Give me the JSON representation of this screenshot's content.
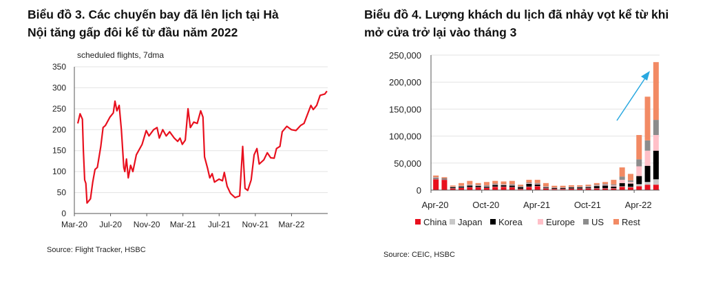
{
  "chart_data": [
    {
      "type": "line",
      "title": "Biểu đồ 3. Các chuyến bay đã lên lịch tại Hà Nội tăng gấp đôi kể từ đầu năm 2022",
      "ylabel": "scheduled flights, 7dma",
      "xlabel": "",
      "ylim": [
        0,
        350
      ],
      "yticks": [
        0,
        50,
        100,
        150,
        200,
        250,
        300,
        350
      ],
      "x_unit": "months since Mar-20",
      "xticks": [
        {
          "x": 0,
          "label": "Mar-20"
        },
        {
          "x": 4,
          "label": "Jul-20"
        },
        {
          "x": 8,
          "label": "Nov-20"
        },
        {
          "x": 12,
          "label": "Mar-21"
        },
        {
          "x": 16,
          "label": "Jul-21"
        },
        {
          "x": 20,
          "label": "Nov-21"
        },
        {
          "x": 24,
          "label": "Mar-22"
        }
      ],
      "xlim": [
        0,
        28
      ],
      "grid": true,
      "color": "#e8101e",
      "series": [
        {
          "name": "scheduled flights",
          "points": [
            [
              0.38,
              215
            ],
            [
              0.63,
              238
            ],
            [
              0.89,
              225
            ],
            [
              1.0,
              150
            ],
            [
              1.14,
              80
            ],
            [
              1.27,
              72
            ],
            [
              1.4,
              25
            ],
            [
              1.78,
              35
            ],
            [
              2.03,
              75
            ],
            [
              2.28,
              105
            ],
            [
              2.54,
              110
            ],
            [
              2.92,
              160
            ],
            [
              3.17,
              205
            ],
            [
              3.43,
              210
            ],
            [
              3.93,
              230
            ],
            [
              4.31,
              240
            ],
            [
              4.49,
              268
            ],
            [
              4.7,
              245
            ],
            [
              4.95,
              258
            ],
            [
              5.2,
              200
            ],
            [
              5.46,
              110
            ],
            [
              5.58,
              100
            ],
            [
              5.76,
              130
            ],
            [
              5.96,
              85
            ],
            [
              6.22,
              115
            ],
            [
              6.47,
              100
            ],
            [
              6.85,
              140
            ],
            [
              7.49,
              165
            ],
            [
              7.94,
              198
            ],
            [
              8.25,
              185
            ],
            [
              8.76,
              200
            ],
            [
              9.14,
              205
            ],
            [
              9.39,
              180
            ],
            [
              9.77,
              200
            ],
            [
              10.15,
              185
            ],
            [
              10.53,
              195
            ],
            [
              11.04,
              180
            ],
            [
              11.42,
              172
            ],
            [
              11.68,
              180
            ],
            [
              11.93,
              165
            ],
            [
              12.26,
              175
            ],
            [
              12.56,
              250
            ],
            [
              12.82,
              205
            ],
            [
              13.2,
              218
            ],
            [
              13.58,
              215
            ],
            [
              13.96,
              245
            ],
            [
              14.21,
              230
            ],
            [
              14.39,
              135
            ],
            [
              14.72,
              108
            ],
            [
              14.97,
              85
            ],
            [
              15.23,
              95
            ],
            [
              15.48,
              75
            ],
            [
              15.99,
              82
            ],
            [
              16.37,
              78
            ],
            [
              16.57,
              98
            ],
            [
              16.88,
              65
            ],
            [
              17.26,
              48
            ],
            [
              17.77,
              38
            ],
            [
              18.27,
              42
            ],
            [
              18.6,
              160
            ],
            [
              18.86,
              60
            ],
            [
              19.16,
              55
            ],
            [
              19.54,
              80
            ],
            [
              19.87,
              140
            ],
            [
              20.18,
              155
            ],
            [
              20.43,
              118
            ],
            [
              20.94,
              128
            ],
            [
              21.32,
              145
            ],
            [
              21.7,
              133
            ],
            [
              22.08,
              132
            ],
            [
              22.34,
              155
            ],
            [
              22.72,
              160
            ],
            [
              22.97,
              195
            ],
            [
              23.48,
              208
            ],
            [
              23.98,
              200
            ],
            [
              24.49,
              198
            ],
            [
              25.0,
              210
            ],
            [
              25.38,
              215
            ],
            [
              26.14,
              258
            ],
            [
              26.4,
              248
            ],
            [
              26.78,
              258
            ],
            [
              27.16,
              282
            ],
            [
              27.67,
              285
            ],
            [
              27.92,
              292
            ]
          ]
        }
      ],
      "source": "Source: Flight Tracker, HSBC"
    },
    {
      "type": "bar",
      "stacked": true,
      "title": "Biểu đồ 4. Lượng khách du lịch đã nhảy vọt kể từ khi mở cửa trở lại vào tháng 3",
      "ylim": [
        0,
        250000
      ],
      "yticks": [
        "0",
        "50,000",
        "100,000",
        "150,000",
        "200,000",
        "250,000"
      ],
      "ytick_values": [
        0,
        50000,
        100000,
        150000,
        200000,
        250000
      ],
      "categories": [
        "Apr-20",
        "May-20",
        "Jun-20",
        "Jul-20",
        "Aug-20",
        "Sep-20",
        "Oct-20",
        "Nov-20",
        "Dec-20",
        "Jan-21",
        "Feb-21",
        "Mar-21",
        "Apr-21",
        "May-21",
        "Jun-21",
        "Jul-21",
        "Aug-21",
        "Sep-21",
        "Oct-21",
        "Nov-21",
        "Dec-21",
        "Jan-22",
        "Feb-22",
        "Mar-22",
        "Apr-22",
        "May-22",
        "Jun-22"
      ],
      "xtick_labels": [
        {
          "index": 0,
          "label": "Apr-20"
        },
        {
          "index": 6,
          "label": "Oct-20"
        },
        {
          "index": 12,
          "label": "Apr-21"
        },
        {
          "index": 18,
          "label": "Oct-21"
        },
        {
          "index": 24,
          "label": "Apr-22"
        }
      ],
      "legend_position": "bottom",
      "grid": true,
      "annotation": "upward arrow over recent bars",
      "arrow_color": "#29a8e0",
      "series": [
        {
          "name": "China",
          "color": "#e8101e",
          "values": [
            20000,
            19000,
            3000,
            4000,
            5000,
            5000,
            4000,
            6000,
            6000,
            5000,
            2000,
            6000,
            7000,
            3000,
            2000,
            2000,
            2500,
            2500,
            3000,
            3000,
            3000,
            3000,
            6000,
            5000,
            7000,
            10000,
            10000
          ]
        },
        {
          "name": "Japan",
          "color": "#c8c8c8",
          "values": [
            1000,
            1000,
            500,
            500,
            500,
            500,
            500,
            500,
            500,
            500,
            500,
            500,
            500,
            500,
            500,
            500,
            500,
            500,
            500,
            500,
            500,
            500,
            1000,
            1000,
            4000,
            5000,
            10000
          ]
        },
        {
          "name": "Korea",
          "color": "#000000",
          "values": [
            1000,
            1000,
            2000,
            2000,
            3000,
            2500,
            2000,
            3000,
            2500,
            3000,
            3000,
            5000,
            3000,
            1500,
            1500,
            1500,
            2000,
            2000,
            2000,
            4000,
            5000,
            3000,
            6000,
            6000,
            15000,
            30000,
            53000
          ]
        },
        {
          "name": "Europe",
          "color": "#ffc0c8",
          "values": [
            1000,
            500,
            500,
            500,
            1000,
            1000,
            1000,
            1000,
            1000,
            1000,
            500,
            1000,
            1000,
            1000,
            500,
            500,
            500,
            500,
            1000,
            1000,
            1500,
            2000,
            6000,
            3000,
            18000,
            28000,
            29000
          ]
        },
        {
          "name": "US",
          "color": "#8c8c8c",
          "values": [
            1000,
            500,
            500,
            1000,
            1000,
            1000,
            1500,
            1500,
            1000,
            1500,
            1000,
            1500,
            1500,
            1000,
            500,
            500,
            500,
            1000,
            1000,
            1500,
            1500,
            2000,
            6000,
            3000,
            13000,
            19000,
            28000
          ]
        },
        {
          "name": "Rest",
          "color": "#f28a64",
          "values": [
            3000,
            2000,
            2000,
            5000,
            6500,
            3000,
            6000,
            5000,
            5000,
            6000,
            3000,
            5000,
            6000,
            6000,
            3000,
            3000,
            3000,
            2500,
            2500,
            3000,
            3500,
            8500,
            17000,
            12000,
            45000,
            81000,
            107000
          ]
        }
      ],
      "source": "Source: CEIC, HSBC"
    }
  ]
}
